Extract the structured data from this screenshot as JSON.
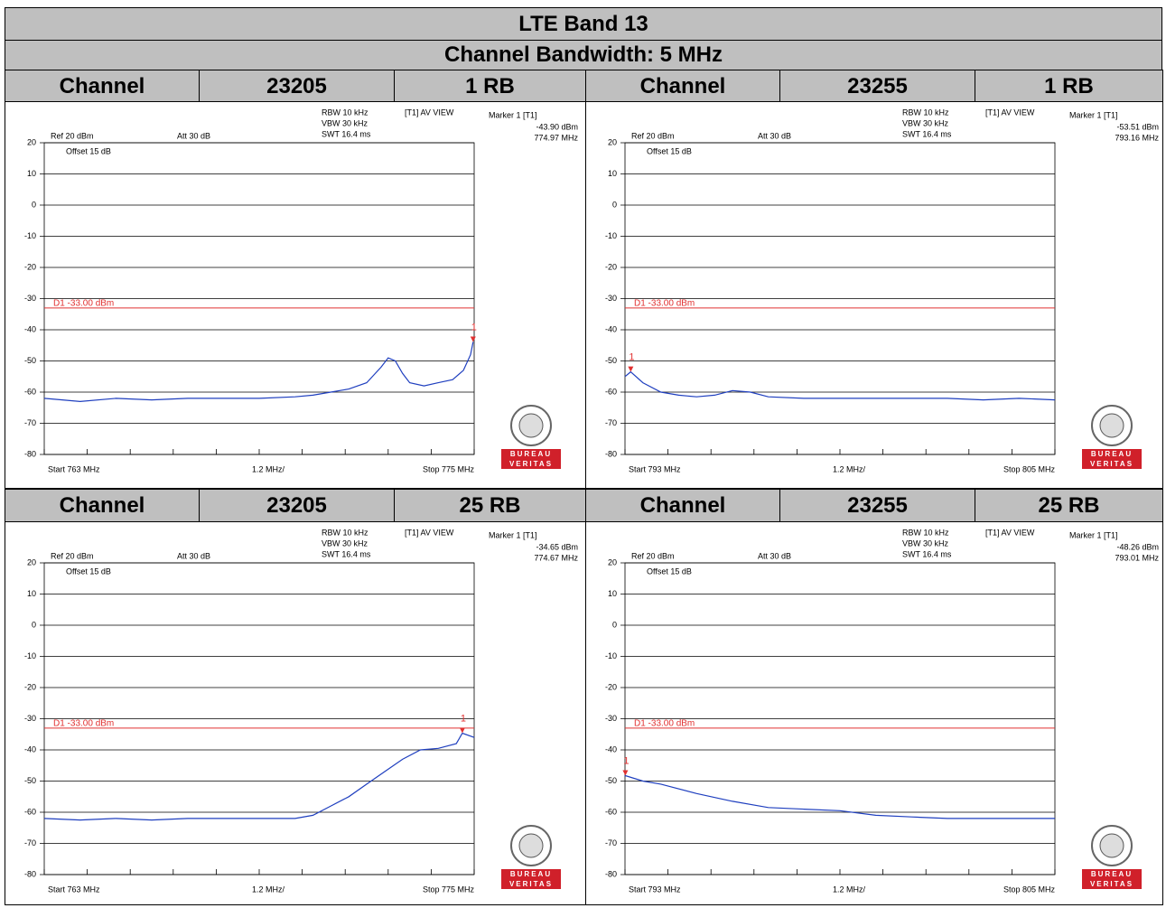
{
  "header": {
    "title": "LTE Band 13",
    "subtitle": "Channel Bandwidth: 5 MHz"
  },
  "panels": [
    {
      "channel_label": "Channel",
      "channel": "23205",
      "rb": "1 RB",
      "plot": {
        "rbw": "RBW 10 kHz",
        "vbw": "VBW 30 kHz",
        "swt": "SWT 16.4 ms",
        "mode": "[T1] AV VIEW",
        "marker_title": "Marker 1 [T1]",
        "marker_level": "-43.90 dBm",
        "marker_freq": "774.97 MHz",
        "ref": "Ref 20 dBm",
        "att": "Att 30 dB",
        "offset": "Offset 15 dB",
        "start": "Start 763 MHz",
        "span": "1.2 MHz/",
        "stop": "Stop 775 MHz",
        "limit_label": "D1 -33.00 dBm",
        "limit": -33,
        "ylim": [
          -80,
          20
        ],
        "yticks": [
          20,
          10,
          0,
          -10,
          -20,
          -30,
          -40,
          -50,
          -60,
          -70,
          -80
        ],
        "xlim": [
          763,
          775
        ],
        "xticks": [
          763,
          764.2,
          765.4,
          766.6,
          767.8,
          769,
          770.2,
          771.4,
          772.6,
          773.8,
          775
        ],
        "marker_label": "1",
        "marker": [
          774.97,
          -43.9
        ],
        "logo": [
          "BUREAU",
          "VERITAS"
        ],
        "trace": {
          "x": [
            763,
            764,
            765,
            766,
            767,
            768,
            769,
            770,
            770.5,
            771,
            771.5,
            772,
            772.4,
            772.6,
            772.8,
            773,
            773.2,
            773.6,
            774,
            774.4,
            774.7,
            774.9,
            774.97
          ],
          "values": [
            -62,
            -63,
            -62,
            -62.5,
            -62,
            -62,
            -62,
            -61.5,
            -61,
            -60,
            -59,
            -57,
            -52,
            -49,
            -50,
            -54,
            -57,
            -58,
            -57,
            -56,
            -53,
            -48,
            -43.9
          ]
        }
      }
    },
    {
      "channel_label": "Channel",
      "channel": "23255",
      "rb": "1 RB",
      "plot": {
        "rbw": "RBW 10 kHz",
        "vbw": "VBW 30 kHz",
        "swt": "SWT 16.4 ms",
        "mode": "[T1] AV VIEW",
        "marker_title": "Marker 1 [T1]",
        "marker_level": "-53.51 dBm",
        "marker_freq": "793.16 MHz",
        "ref": "Ref 20 dBm",
        "att": "Att 30 dB",
        "offset": "Offset 15 dB",
        "start": "Start 793 MHz",
        "span": "1.2 MHz/",
        "stop": "Stop 805 MHz",
        "limit_label": "D1 -33.00 dBm",
        "limit": -33,
        "ylim": [
          -80,
          20
        ],
        "yticks": [
          20,
          10,
          0,
          -10,
          -20,
          -30,
          -40,
          -50,
          -60,
          -70,
          -80
        ],
        "xlim": [
          793,
          805
        ],
        "xticks": [
          793,
          794.2,
          795.4,
          796.6,
          797.8,
          799,
          800.2,
          801.4,
          802.6,
          803.8,
          805
        ],
        "marker_label": "1",
        "marker": [
          793.16,
          -53.51
        ],
        "logo": [
          "BUREAU",
          "VERITAS"
        ],
        "trace": {
          "x": [
            793,
            793.16,
            793.5,
            794,
            794.5,
            795,
            795.5,
            796,
            796.5,
            797,
            798,
            799,
            800,
            801,
            802,
            803,
            804,
            805
          ],
          "values": [
            -55,
            -53.51,
            -57,
            -60,
            -61,
            -61.5,
            -61,
            -59.5,
            -60,
            -61.5,
            -62,
            -62,
            -62,
            -62,
            -62,
            -62.5,
            -62,
            -62.5
          ]
        }
      }
    },
    {
      "channel_label": "Channel",
      "channel": "23205",
      "rb": "25 RB",
      "plot": {
        "rbw": "RBW 10 kHz",
        "vbw": "VBW 30 kHz",
        "swt": "SWT 16.4 ms",
        "mode": "[T1] AV VIEW",
        "marker_title": "Marker 1 [T1]",
        "marker_level": "-34.65 dBm",
        "marker_freq": "774.67 MHz",
        "ref": "Ref 20 dBm",
        "att": "Att 30 dB",
        "offset": "Offset 15 dB",
        "start": "Start 763 MHz",
        "span": "1.2 MHz/",
        "stop": "Stop 775 MHz",
        "limit_label": "D1 -33.00 dBm",
        "limit": -33,
        "ylim": [
          -80,
          20
        ],
        "yticks": [
          20,
          10,
          0,
          -10,
          -20,
          -30,
          -40,
          -50,
          -60,
          -70,
          -80
        ],
        "xlim": [
          763,
          775
        ],
        "xticks": [
          763,
          764.2,
          765.4,
          766.6,
          767.8,
          769,
          770.2,
          771.4,
          772.6,
          773.8,
          775
        ],
        "marker_label": "1",
        "marker": [
          774.67,
          -34.65
        ],
        "logo": [
          "BUREAU",
          "VERITAS"
        ],
        "trace": {
          "x": [
            763,
            764,
            765,
            766,
            767,
            768,
            769,
            770,
            770.5,
            771,
            771.5,
            772,
            772.5,
            773,
            773.5,
            774,
            774.5,
            774.67,
            775
          ],
          "values": [
            -62,
            -62.5,
            -62,
            -62.5,
            -62,
            -62,
            -62,
            -62,
            -61,
            -58,
            -55,
            -51,
            -47,
            -43,
            -40,
            -39.5,
            -38,
            -34.65,
            -36
          ]
        }
      }
    },
    {
      "channel_label": "Channel",
      "channel": "23255",
      "rb": "25 RB",
      "plot": {
        "rbw": "RBW 10 kHz",
        "vbw": "VBW 30 kHz",
        "swt": "SWT 16.4 ms",
        "mode": "[T1] AV VIEW",
        "marker_title": "Marker 1 [T1]",
        "marker_level": "-48.26 dBm",
        "marker_freq": "793.01 MHz",
        "ref": "Ref 20 dBm",
        "att": "Att 30 dB",
        "offset": "Offset 15 dB",
        "start": "Start 793 MHz",
        "span": "1.2 MHz/",
        "stop": "Stop 805 MHz",
        "limit_label": "D1 -33.00 dBm",
        "limit": -33,
        "ylim": [
          -80,
          20
        ],
        "yticks": [
          20,
          10,
          0,
          -10,
          -20,
          -30,
          -40,
          -50,
          -60,
          -70,
          -80
        ],
        "xlim": [
          793,
          805
        ],
        "xticks": [
          793,
          794.2,
          795.4,
          796.6,
          797.8,
          799,
          800.2,
          801.4,
          802.6,
          803.8,
          805
        ],
        "marker_label": "1",
        "marker": [
          793.01,
          -48.26
        ],
        "logo": [
          "BUREAU",
          "VERITAS"
        ],
        "trace": {
          "x": [
            793,
            793.01,
            793.5,
            794,
            795,
            796,
            797,
            798,
            799,
            800,
            801,
            802,
            803,
            804,
            805
          ],
          "values": [
            -48.5,
            -48.26,
            -50,
            -51,
            -54,
            -56.5,
            -58.5,
            -59,
            -59.5,
            -61,
            -61.5,
            -62,
            -62,
            -62,
            -62
          ]
        }
      }
    }
  ]
}
